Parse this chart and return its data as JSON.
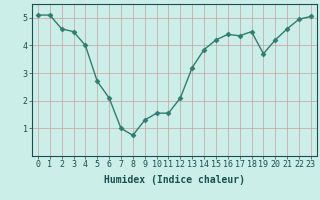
{
  "x": [
    0,
    1,
    2,
    3,
    4,
    5,
    6,
    7,
    8,
    9,
    10,
    11,
    12,
    13,
    14,
    15,
    16,
    17,
    18,
    19,
    20,
    21,
    22,
    23
  ],
  "y": [
    5.1,
    5.1,
    4.6,
    4.5,
    4.0,
    2.7,
    2.1,
    1.0,
    0.75,
    1.3,
    1.55,
    1.55,
    2.1,
    3.2,
    3.85,
    4.2,
    4.4,
    4.35,
    4.5,
    3.7,
    4.2,
    4.6,
    4.95,
    5.05
  ],
  "line_color": "#2e7d6e",
  "marker": "D",
  "marker_size": 2.5,
  "linewidth": 1.0,
  "xlabel": "Humidex (Indice chaleur)",
  "xlim": [
    -0.5,
    23.5
  ],
  "ylim": [
    0,
    5.5
  ],
  "yticks": [
    1,
    2,
    3,
    4,
    5
  ],
  "xticks": [
    0,
    1,
    2,
    3,
    4,
    5,
    6,
    7,
    8,
    9,
    10,
    11,
    12,
    13,
    14,
    15,
    16,
    17,
    18,
    19,
    20,
    21,
    22,
    23
  ],
  "grid_color": "#c8a0a0",
  "background_color": "#cceee8",
  "xlabel_fontsize": 7,
  "tick_fontsize": 6,
  "tick_color": "#1a4f4f",
  "axis_color": "#1a4f4f"
}
